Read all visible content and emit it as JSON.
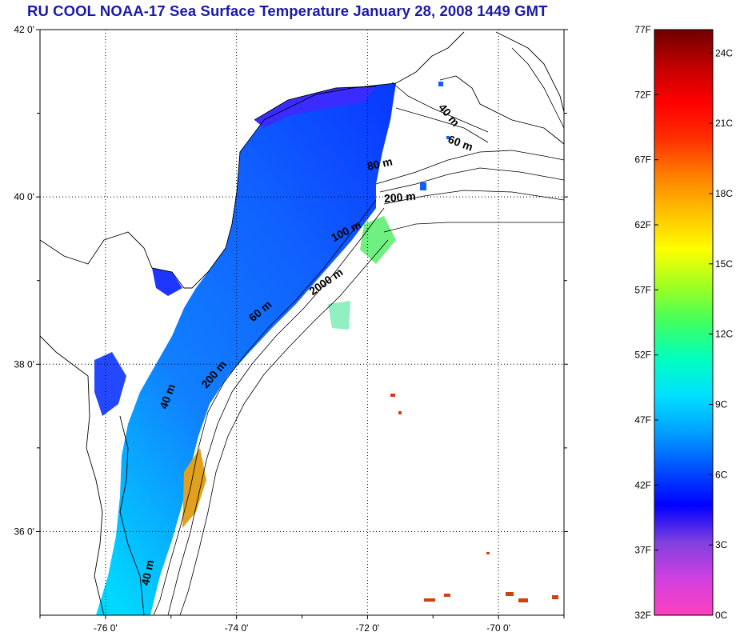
{
  "title": "RU COOL  NOAA-17 Sea Surface Temperature January 28, 2008 1449 GMT",
  "map": {
    "lon_range": [
      -77,
      -69
    ],
    "lat_range": [
      35,
      42
    ],
    "lat_ticks": [
      {
        "value": 42,
        "label": "42 0'"
      },
      {
        "value": 40,
        "label": "40 0'"
      },
      {
        "value": 38,
        "label": "38 0'"
      },
      {
        "value": 36,
        "label": "36 0'"
      }
    ],
    "lon_ticks": [
      {
        "value": -76,
        "label": "-76 0'"
      },
      {
        "value": -74,
        "label": "-74 0'"
      },
      {
        "value": -72,
        "label": "-72 0'"
      },
      {
        "value": -70,
        "label": "-70 0'"
      }
    ],
    "depth_labels": [
      {
        "text": "40 m",
        "lon": -70.8,
        "lat": 40.95,
        "angle": 50
      },
      {
        "text": "60 m",
        "lon": -70.6,
        "lat": 40.6,
        "angle": 20
      },
      {
        "text": "80 m",
        "lon": -71.8,
        "lat": 40.35,
        "angle": -12
      },
      {
        "text": "200 m",
        "lon": -71.5,
        "lat": 39.95,
        "angle": -5
      },
      {
        "text": "100 m",
        "lon": -72.3,
        "lat": 39.55,
        "angle": -28
      },
      {
        "text": "2000 m",
        "lon": -72.6,
        "lat": 38.95,
        "angle": -35
      },
      {
        "text": "60 m",
        "lon": -73.6,
        "lat": 38.6,
        "angle": -40
      },
      {
        "text": "200 m",
        "lon": -74.3,
        "lat": 37.85,
        "angle": -50
      },
      {
        "text": "40 m",
        "lon": -75.0,
        "lat": 37.6,
        "angle": -70
      },
      {
        "text": "40 m",
        "lon": -75.3,
        "lat": 35.5,
        "angle": -78
      }
    ]
  },
  "colorbar": {
    "f_labels": [
      "77F",
      "72F",
      "67F",
      "62F",
      "57F",
      "52F",
      "47F",
      "42F",
      "37F",
      "32F"
    ],
    "c_labels": [
      "24C",
      "21C",
      "18C",
      "15C",
      "12C",
      "9C",
      "6C",
      "3C",
      "0C"
    ],
    "colors": [
      "#ff40c0",
      "#d040e0",
      "#8040e0",
      "#0000ff",
      "#0050ff",
      "#00a0ff",
      "#00e0ff",
      "#00ffc0",
      "#40ff60",
      "#a0ff20",
      "#ffff00",
      "#ffc000",
      "#ff8000",
      "#ff3000",
      "#ff0000",
      "#c00000",
      "#700000"
    ]
  }
}
